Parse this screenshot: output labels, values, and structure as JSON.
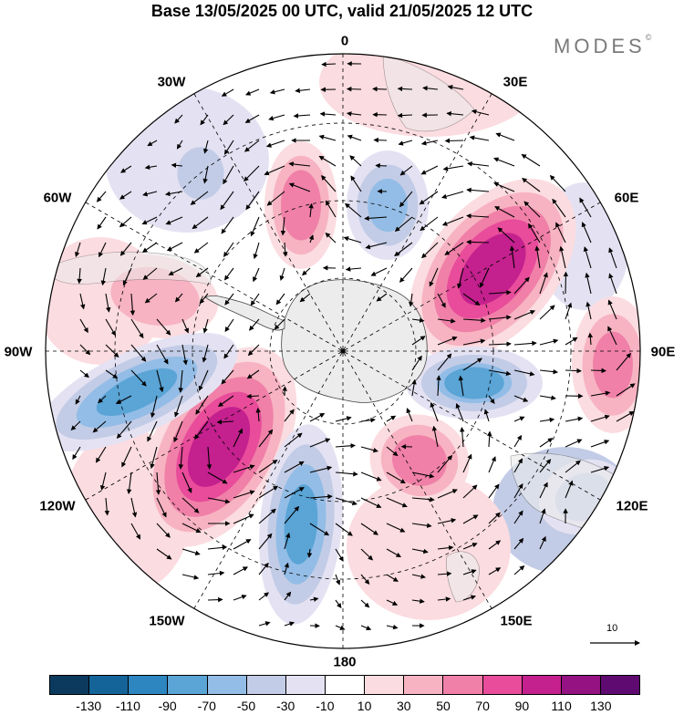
{
  "title": "Base 13/05/2025 00 UTC, valid 21/05/2025 12 UTC",
  "brand": "MODES",
  "brand_mark": "©",
  "longitude_labels": {
    "top": "0",
    "e30": "30E",
    "w30": "30W",
    "e60": "60E",
    "w60": "60W",
    "e90": "90E",
    "w90": "90W",
    "e120": "120E",
    "w120": "120W",
    "e150": "150E",
    "w150": "150W",
    "bottom": "180"
  },
  "vector_reference": {
    "label": "10"
  },
  "colorbar": {
    "colors": [
      "#0b3a5e",
      "#14649a",
      "#2e86c1",
      "#5aa4d6",
      "#93bde6",
      "#c3cce6",
      "#e4e2f2",
      "#ffffff",
      "#fbdce0",
      "#f7b3c1",
      "#f080a8",
      "#e84c9a",
      "#c4208e",
      "#951282",
      "#5e0a70"
    ],
    "ticks": [
      "-130",
      "-110",
      "-90",
      "-70",
      "-50",
      "-30",
      "-10",
      "10",
      "30",
      "50",
      "70",
      "90",
      "110",
      "130"
    ]
  },
  "anomaly_centers": [
    {
      "sign": "positive",
      "value": 110
    },
    {
      "sign": "positive",
      "value": 110
    },
    {
      "sign": "positive",
      "value": 70
    },
    {
      "sign": "positive",
      "value": 70
    },
    {
      "sign": "positive",
      "value": 60
    },
    {
      "sign": "positive",
      "value": 50
    },
    {
      "sign": "negative",
      "value": -80
    },
    {
      "sign": "negative",
      "value": -80
    },
    {
      "sign": "negative",
      "value": -70
    },
    {
      "sign": "negative",
      "value": -60
    },
    {
      "sign": "negative",
      "value": -40
    },
    {
      "sign": "negative",
      "value": -40
    }
  ]
}
